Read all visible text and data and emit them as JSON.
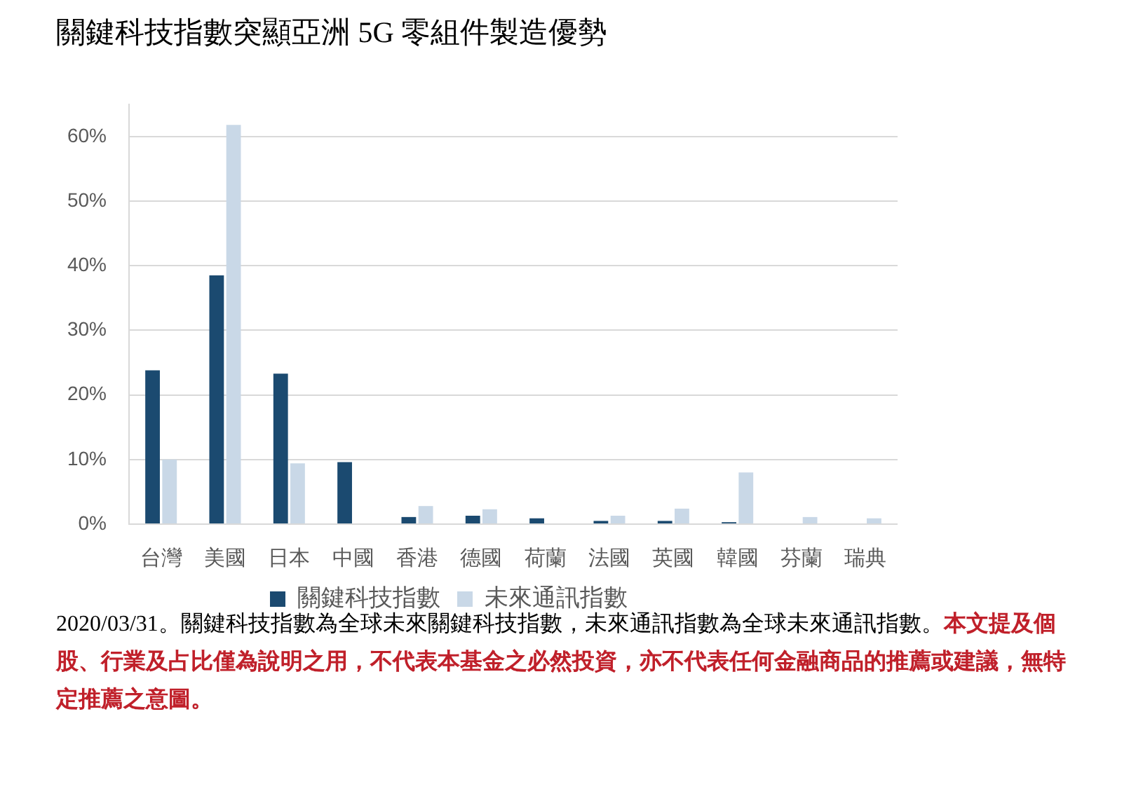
{
  "chart_data": {
    "type": "bar",
    "title": "關鍵科技指數突顯亞洲 5G 零組件製造優勢",
    "categories": [
      "台灣",
      "美國",
      "日本",
      "中國",
      "香港",
      "德國",
      "荷蘭",
      "法國",
      "英國",
      "韓國",
      "芬蘭",
      "瑞典"
    ],
    "series": [
      {
        "name": "關鍵科技指數",
        "color": "#1b4a70",
        "values": [
          23.8,
          38.5,
          23.3,
          9.6,
          1.1,
          1.3,
          0.9,
          0.5,
          0.5,
          0.3,
          null,
          null
        ]
      },
      {
        "name": "未來通訊指數",
        "color": "#c9d8e7",
        "values": [
          10.0,
          61.8,
          9.4,
          null,
          2.8,
          2.3,
          null,
          1.3,
          2.4,
          8.0,
          1.1,
          0.9
        ]
      }
    ],
    "ylim": [
      0,
      65
    ],
    "yticks": [
      {
        "value": 0,
        "label": "0%"
      },
      {
        "value": 10,
        "label": "10%"
      },
      {
        "value": 20,
        "label": "20%"
      },
      {
        "value": 30,
        "label": "30%"
      },
      {
        "value": 40,
        "label": "40%"
      },
      {
        "value": 50,
        "label": "50%"
      },
      {
        "value": 60,
        "label": "60%"
      }
    ],
    "grid": "y",
    "legend": "bottom",
    "annotations": [
      "2020/03/31。關鍵科技指數為全球未來關鍵科技指數，未來通訊指數為全球未來通訊指數。",
      "本文提及個股、行業及占比僅為說明之用，不代表本基金之必然投資，亦不代表任何金融商品的推薦或建議，無特定推薦之意圖。"
    ]
  }
}
